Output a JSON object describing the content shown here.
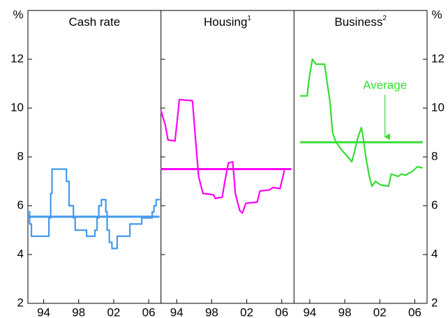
{
  "chart_data": [
    {
      "type": "line",
      "title": "Cash rate",
      "y_label": "%",
      "step": true,
      "color": "#4499ee",
      "average": 5.55,
      "x": [
        1992.2,
        1992.4,
        1992.6,
        1994.6,
        1994.8,
        1994.95,
        1996.6,
        1996.9,
        1997.4,
        1997.6,
        1998.9,
        1999.85,
        2000.1,
        2000.3,
        2000.6,
        2001.1,
        2001.25,
        2001.5,
        2001.8,
        2002.4,
        2003.85,
        2005.2,
        2006.4,
        2006.6,
        2006.85,
        2007.3
      ],
      "values": [
        5.75,
        5.25,
        4.75,
        5.5,
        6.5,
        7.5,
        7.0,
        6.0,
        5.5,
        5.0,
        4.75,
        5.0,
        5.5,
        6.0,
        6.25,
        5.75,
        5.0,
        4.5,
        4.25,
        4.75,
        5.25,
        5.5,
        5.75,
        6.0,
        6.25,
        6.25
      ],
      "xlim": [
        1992.2,
        2007.4
      ],
      "xticks": [
        {
          "value": 1994,
          "label": "94"
        },
        {
          "value": 1998,
          "label": "98"
        },
        {
          "value": 2002,
          "label": "02"
        },
        {
          "value": 2006,
          "label": "06"
        }
      ],
      "ylim": [
        2,
        14
      ],
      "yticks": [
        2,
        4,
        6,
        8,
        10,
        12
      ]
    },
    {
      "type": "line",
      "title": "Housing",
      "title_note": "1",
      "step": false,
      "color": "#ff00ff",
      "average": 7.5,
      "x": [
        1992.2,
        1992.7,
        1993.0,
        1993.8,
        1994.0,
        1994.3,
        1995.8,
        1996.2,
        1996.5,
        1997.0,
        1998.2,
        1998.4,
        1999.2,
        1999.5,
        1999.9,
        2000.4,
        2000.7,
        2001.2,
        2001.5,
        2001.9,
        2003.2,
        2003.5,
        2004.6,
        2005.0,
        2005.8,
        2006.0,
        2006.3
      ],
      "values": [
        9.9,
        9.3,
        8.7,
        8.65,
        9.3,
        10.35,
        10.3,
        8.5,
        7.2,
        6.5,
        6.45,
        6.3,
        6.35,
        7.0,
        7.75,
        7.8,
        6.5,
        5.8,
        5.7,
        6.1,
        6.15,
        6.6,
        6.65,
        6.75,
        6.7,
        7.0,
        7.45
      ],
      "xlim": [
        1992.2,
        2007.4
      ],
      "xticks": [
        {
          "value": 1994,
          "label": "94"
        },
        {
          "value": 1998,
          "label": "98"
        },
        {
          "value": 2002,
          "label": "02"
        },
        {
          "value": 2006,
          "label": "06"
        }
      ],
      "ylim": [
        2,
        14
      ],
      "yticks": [
        2,
        4,
        6,
        8,
        10,
        12
      ]
    },
    {
      "type": "line",
      "title": "Business",
      "title_note": "2",
      "y_label": "%",
      "step": false,
      "color": "#33dd33",
      "average": 8.6,
      "annotation": "Average",
      "x": [
        1992.9,
        1993.7,
        1993.96,
        1994.3,
        1994.7,
        1995.7,
        1996.0,
        1996.3,
        1996.6,
        1997.0,
        1997.6,
        1998.1,
        1998.8,
        1999.1,
        1999.5,
        1999.9,
        2000.1,
        2000.4,
        2000.8,
        2001.1,
        2001.5,
        2002.1,
        2003.0,
        2003.3,
        2004.1,
        2004.5,
        2004.9,
        2005.7,
        2006.3,
        2006.9
      ],
      "values": [
        10.5,
        10.5,
        11.3,
        12.0,
        11.8,
        11.8,
        11.0,
        10.3,
        9.0,
        8.6,
        8.3,
        8.1,
        7.8,
        8.2,
        8.8,
        9.2,
        8.8,
        8.0,
        7.2,
        6.8,
        7.0,
        6.85,
        6.8,
        7.3,
        7.2,
        7.3,
        7.25,
        7.4,
        7.6,
        7.55
      ],
      "xlim": [
        1992.2,
        2007.4
      ],
      "xticks": [
        {
          "value": 1994,
          "label": "94"
        },
        {
          "value": 1998,
          "label": "98"
        },
        {
          "value": 2002,
          "label": "02"
        },
        {
          "value": 2006,
          "label": "06"
        }
      ],
      "ylim": [
        2,
        14
      ],
      "yticks": [
        2,
        4,
        6,
        8,
        10,
        12
      ]
    }
  ]
}
